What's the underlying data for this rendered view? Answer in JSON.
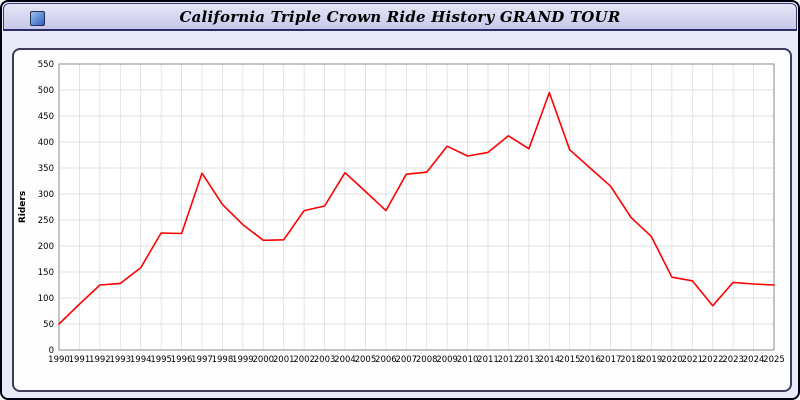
{
  "header": {
    "title": "California Triple Crown Ride History GRAND TOUR"
  },
  "chart_data": {
    "type": "line",
    "title": "California Triple Crown Ride History GRAND TOUR",
    "xlabel": "",
    "ylabel": "Riders",
    "ylim": [
      0,
      550
    ],
    "ytick_step": 50,
    "grid": true,
    "legend": "none",
    "line_color": "#ff0000",
    "grid_color": "#d9d9d9",
    "frame_color": "#8a8a8a",
    "x": [
      1990,
      1991,
      1992,
      1993,
      1994,
      1995,
      1996,
      1997,
      1998,
      1999,
      2000,
      2001,
      2002,
      2003,
      2004,
      2005,
      2006,
      2007,
      2008,
      2009,
      2010,
      2011,
      2012,
      2013,
      2014,
      2015,
      2016,
      2017,
      2018,
      2019,
      2020,
      2021,
      2022,
      2023,
      2024,
      2025
    ],
    "values": [
      50,
      88,
      125,
      128,
      158,
      225,
      224,
      340,
      280,
      241,
      211,
      212,
      268,
      277,
      341,
      305,
      268,
      338,
      342,
      392,
      373,
      380,
      412,
      387,
      495,
      385,
      350,
      315,
      255,
      218,
      140,
      133,
      85,
      130,
      127,
      125
    ]
  }
}
